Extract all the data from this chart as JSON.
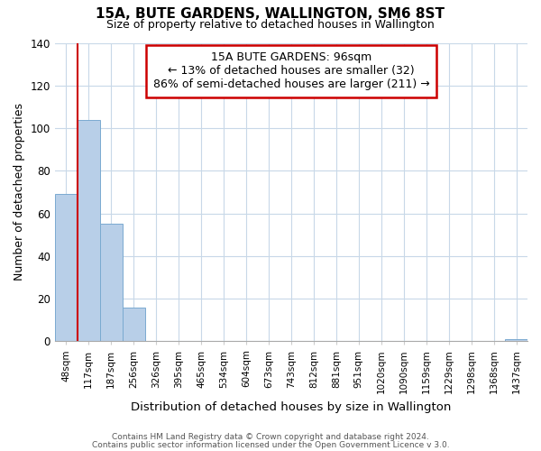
{
  "title": "15A, BUTE GARDENS, WALLINGTON, SM6 8ST",
  "subtitle": "Size of property relative to detached houses in Wallington",
  "xlabel": "Distribution of detached houses by size in Wallington",
  "ylabel": "Number of detached properties",
  "categories": [
    "48sqm",
    "117sqm",
    "187sqm",
    "256sqm",
    "326sqm",
    "395sqm",
    "465sqm",
    "534sqm",
    "604sqm",
    "673sqm",
    "743sqm",
    "812sqm",
    "881sqm",
    "951sqm",
    "1020sqm",
    "1090sqm",
    "1159sqm",
    "1229sqm",
    "1298sqm",
    "1368sqm",
    "1437sqm"
  ],
  "values": [
    69,
    104,
    55,
    16,
    0,
    0,
    0,
    0,
    0,
    0,
    0,
    0,
    0,
    0,
    0,
    0,
    0,
    0,
    0,
    0,
    1
  ],
  "bar_color": "#b8cfe8",
  "bar_edge_color": "#7aaad0",
  "marker_color": "#cc0000",
  "marker_label": "15A BUTE GARDENS: 96sqm",
  "annotation_line1": "← 13% of detached houses are smaller (32)",
  "annotation_line2": "86% of semi-detached houses are larger (211) →",
  "ylim": [
    0,
    140
  ],
  "yticks": [
    0,
    20,
    40,
    60,
    80,
    100,
    120,
    140
  ],
  "footer1": "Contains HM Land Registry data © Crown copyright and database right 2024.",
  "footer2": "Contains public sector information licensed under the Open Government Licence v 3.0.",
  "background_color": "#ffffff",
  "grid_color": "#c8d8e8"
}
